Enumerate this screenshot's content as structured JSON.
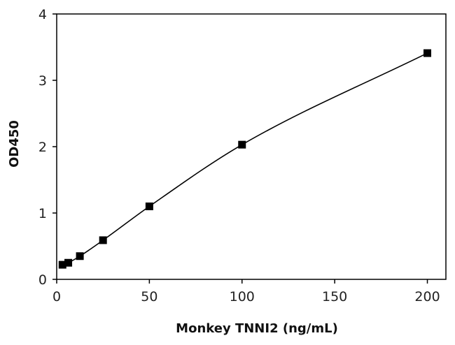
{
  "chart_data": {
    "type": "scatter",
    "title": "",
    "xlabel": "Monkey TNNI2 (ng/mL)",
    "ylabel": "OD450",
    "xlim": [
      0,
      210
    ],
    "ylim": [
      0,
      4
    ],
    "x_ticks": [
      "0",
      "50",
      "100",
      "150",
      "200"
    ],
    "y_ticks": [
      "0",
      "1",
      "2",
      "3",
      "4"
    ],
    "grid": false,
    "legend": "none",
    "marker": "square",
    "fit_line": "smooth curve through points",
    "series": [
      {
        "x": [
          3.125,
          6.25,
          12.5,
          25,
          50,
          100,
          200
        ],
        "y": [
          0.22,
          0.25,
          0.35,
          0.59,
          1.1,
          2.03,
          3.41
        ]
      }
    ],
    "colors": {
      "marker": "#000000",
      "line": "#000000",
      "axis": "#000000"
    }
  }
}
